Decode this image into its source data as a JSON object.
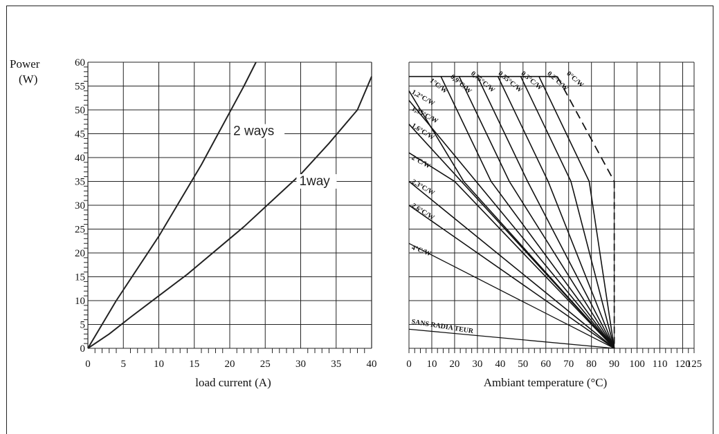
{
  "chart_data": [
    {
      "type": "line",
      "ylabel": "Power",
      "ylabel_unit": "(W)",
      "xlabel": "load current (A)",
      "xlim": [
        0,
        40
      ],
      "ylim": [
        0,
        60
      ],
      "x_ticks": [
        0,
        5,
        10,
        15,
        20,
        25,
        30,
        35,
        40
      ],
      "y_ticks": [
        0,
        5,
        10,
        15,
        20,
        25,
        30,
        35,
        40,
        45,
        50,
        55,
        60
      ],
      "grid": true,
      "series": [
        {
          "name": "2 ways",
          "x": [
            0,
            2,
            4,
            6,
            8,
            10,
            12,
            14,
            16,
            18,
            20,
            22,
            23.7
          ],
          "y": [
            0,
            5,
            10,
            14.5,
            19,
            23.5,
            28.5,
            33.5,
            38.5,
            44,
            49.5,
            55,
            60
          ]
        },
        {
          "name": "1way",
          "x": [
            0,
            3,
            6,
            10,
            14,
            18,
            22,
            26,
            30,
            34,
            38,
            40
          ],
          "y": [
            0,
            3,
            6.5,
            11,
            15.5,
            20.5,
            25.5,
            31,
            36.5,
            43,
            50,
            57
          ]
        }
      ]
    },
    {
      "type": "line",
      "xlabel": "Ambiant temperature (°C)",
      "xlim": [
        0,
        125
      ],
      "ylim": [
        0,
        60
      ],
      "x_ticks": [
        0,
        10,
        20,
        30,
        40,
        50,
        60,
        70,
        80,
        90,
        100,
        110,
        120,
        125
      ],
      "grid": true,
      "series": [
        {
          "name": "0°C/W",
          "x": [
            65,
            90
          ],
          "y": [
            57,
            35
          ],
          "dashed": true
        },
        {
          "name": "0,2°C/W",
          "x": [
            57,
            79,
            90
          ],
          "y": [
            57,
            35,
            0
          ]
        },
        {
          "name": "0,3°C/W",
          "x": [
            49,
            71,
            90
          ],
          "y": [
            57,
            35,
            0
          ]
        },
        {
          "name": "0,55°C/W",
          "x": [
            39,
            61,
            90
          ],
          "y": [
            57,
            35,
            0
          ]
        },
        {
          "name": "0,75°C/W",
          "x": [
            30,
            52,
            90
          ],
          "y": [
            57,
            35,
            0
          ]
        },
        {
          "name": "0,9°C/W",
          "x": [
            22,
            44,
            90
          ],
          "y": [
            57,
            35,
            0
          ]
        },
        {
          "name": "1°C/W",
          "x": [
            14,
            36,
            90
          ],
          "y": [
            57,
            35,
            0
          ]
        },
        {
          "name": "1,2°C/W",
          "x": [
            0,
            24,
            90
          ],
          "y": [
            54,
            35,
            0
          ]
        },
        {
          "name": "1,35°C/W",
          "x": [
            0,
            90
          ],
          "y": [
            52,
            0
          ]
        },
        {
          "name": "1,6°C/W",
          "x": [
            0,
            90
          ],
          "y": [
            47,
            0
          ]
        },
        {
          "name": "2°C/W",
          "x": [
            0,
            20,
            90
          ],
          "y": [
            41,
            35,
            0
          ]
        },
        {
          "name": "2,3°C/W",
          "x": [
            0,
            90
          ],
          "y": [
            35,
            0
          ]
        },
        {
          "name": "2,6°C/W",
          "x": [
            0,
            90
          ],
          "y": [
            30,
            0
          ]
        },
        {
          "name": "4°C/W",
          "x": [
            0,
            90
          ],
          "y": [
            22,
            0
          ]
        },
        {
          "name": "SANS RADIA TEUR",
          "x": [
            0,
            90
          ],
          "y": [
            4,
            0
          ]
        }
      ]
    }
  ]
}
